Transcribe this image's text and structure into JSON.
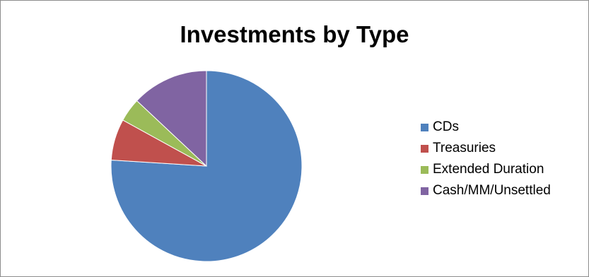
{
  "chart_data": {
    "type": "pie",
    "title": "Investments by Type",
    "categories": [
      "CDs",
      "Treasuries",
      "Extended Duration",
      "Cash/MM/Unsettled"
    ],
    "values": [
      76,
      7,
      4,
      13
    ],
    "colors": [
      "#4f81bd",
      "#c0504d",
      "#9bbb59",
      "#8064a2"
    ],
    "start_angle_deg": 0,
    "direction": "clockwise",
    "legend_position": "right"
  }
}
